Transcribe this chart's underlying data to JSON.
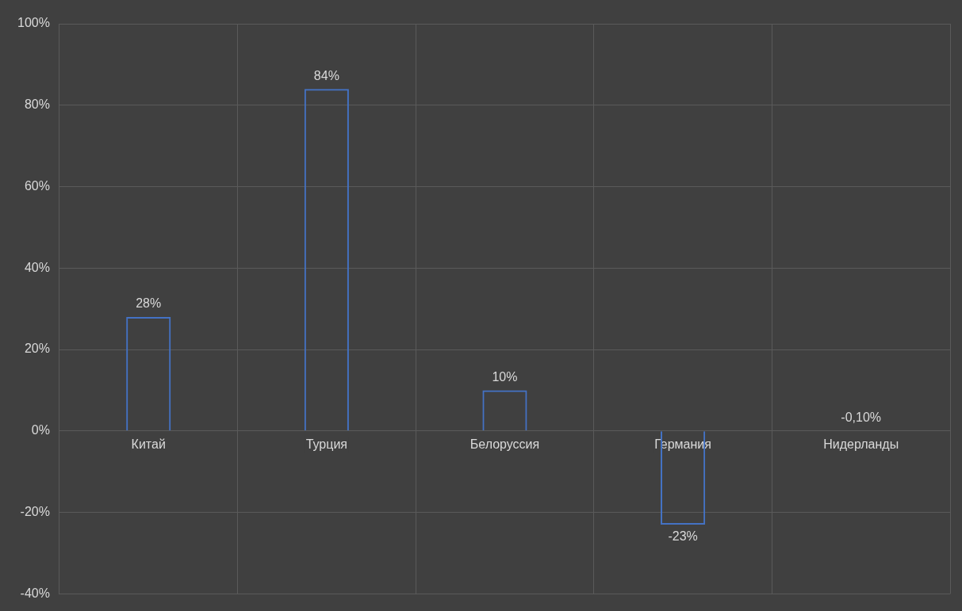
{
  "chart_data": {
    "type": "bar",
    "categories": [
      "Китай",
      "Турция",
      "Белоруссия",
      "Германия",
      "Нидерланды"
    ],
    "values": [
      28,
      84,
      10,
      -23,
      -0.1
    ],
    "value_labels": [
      "28%",
      "84%",
      "10%",
      "-23%",
      "-0,10%"
    ],
    "color": "#4472c4",
    "ylim": [
      -40,
      100
    ],
    "yticks": [
      {
        "value": -40,
        "label": "-40%"
      },
      {
        "value": -20,
        "label": "-20%"
      },
      {
        "value": 0,
        "label": "0%"
      },
      {
        "value": 20,
        "label": "20%"
      },
      {
        "value": 40,
        "label": "40%"
      },
      {
        "value": 60,
        "label": "60%"
      },
      {
        "value": 80,
        "label": "80%"
      },
      {
        "value": 100,
        "label": "100%"
      }
    ],
    "grid": true,
    "legend": false
  }
}
